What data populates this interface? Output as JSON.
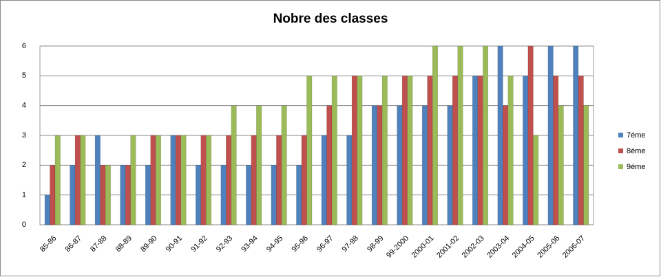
{
  "chart_data": {
    "type": "bar",
    "title": "Nobre des classes",
    "categories": [
      "85-86",
      "86-87",
      "87-88",
      "88-89",
      "89-90",
      "90-91",
      "91-92",
      "92-93",
      "93-94",
      "94-95",
      "95-96",
      "96-97",
      "97-98",
      "98-99",
      "99-2000",
      "2000-01",
      "2001-02",
      "2002-03",
      "2003-04",
      "2004-05",
      "2005-06",
      "2006-07"
    ],
    "series": [
      {
        "name": "7éme",
        "color": "#4f81bd",
        "values": [
          1,
          2,
          3,
          2,
          2,
          3,
          2,
          2,
          2,
          2,
          2,
          3,
          3,
          4,
          4,
          4,
          4,
          5,
          6,
          5,
          6,
          6
        ]
      },
      {
        "name": "8éme",
        "color": "#c0504d",
        "values": [
          2,
          3,
          2,
          2,
          3,
          3,
          3,
          3,
          3,
          3,
          3,
          4,
          5,
          4,
          5,
          5,
          5,
          5,
          4,
          6,
          5,
          5
        ]
      },
      {
        "name": "9éme",
        "color": "#9bbb59",
        "values": [
          3,
          3,
          2,
          3,
          3,
          3,
          3,
          4,
          4,
          4,
          5,
          5,
          5,
          5,
          5,
          6,
          6,
          6,
          5,
          3,
          4,
          4
        ]
      }
    ],
    "ylim": [
      0,
      6
    ],
    "yticks": [
      0,
      1,
      2,
      3,
      4,
      5,
      6
    ],
    "grid": true,
    "legend": "right"
  }
}
